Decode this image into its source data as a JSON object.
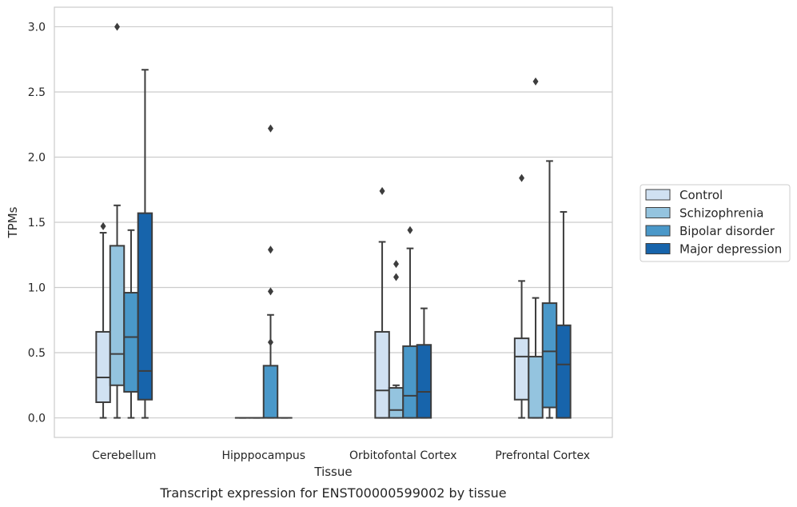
{
  "caption": "Transcript expression for ENST00000599002 by tissue",
  "chart_data": {
    "type": "box",
    "xlabel": "Tissue",
    "ylabel": "TPMs",
    "ylim": [
      -0.15,
      3.15
    ],
    "yticks": [
      "0.0",
      "0.5",
      "1.0",
      "1.5",
      "2.0",
      "2.5",
      "3.0"
    ],
    "grid": true,
    "legend_placement": "right",
    "categories": [
      "Cerebellum",
      "Hipppocampus",
      "Orbitofontal Cortex",
      "Prefrontal Cortex"
    ],
    "series": [
      {
        "name": "Control",
        "color": "#d0e1f2",
        "boxes": [
          {
            "whislo": 0.0,
            "q1": 0.12,
            "med": 0.31,
            "q3": 0.66,
            "whishi": 1.42,
            "fliers": [
              1.47
            ]
          },
          {
            "whislo": 0.0,
            "q1": 0.0,
            "med": 0.0,
            "q3": 0.0,
            "whishi": 0.0,
            "fliers": []
          },
          {
            "whislo": 0.0,
            "q1": 0.0,
            "med": 0.21,
            "q3": 0.66,
            "whishi": 1.35,
            "fliers": [
              1.74
            ]
          },
          {
            "whislo": 0.0,
            "q1": 0.14,
            "med": 0.47,
            "q3": 0.61,
            "whishi": 1.05,
            "fliers": [
              1.84
            ]
          }
        ]
      },
      {
        "name": "Schizophrenia",
        "color": "#94c4df",
        "boxes": [
          {
            "whislo": 0.0,
            "q1": 0.25,
            "med": 0.49,
            "q3": 1.32,
            "whishi": 1.63,
            "fliers": [
              3.0
            ]
          },
          {
            "whislo": 0.0,
            "q1": 0.0,
            "med": 0.0,
            "q3": 0.0,
            "whishi": 0.0,
            "fliers": []
          },
          {
            "whislo": 0.0,
            "q1": 0.0,
            "med": 0.06,
            "q3": 0.23,
            "whishi": 0.25,
            "fliers": [
              1.08,
              1.18
            ]
          },
          {
            "whislo": 0.0,
            "q1": 0.0,
            "med": 0.0,
            "q3": 0.47,
            "whishi": 0.92,
            "fliers": [
              2.58
            ]
          }
        ]
      },
      {
        "name": "Bipolar disorder",
        "color": "#4a98c9",
        "boxes": [
          {
            "whislo": 0.0,
            "q1": 0.2,
            "med": 0.62,
            "q3": 0.96,
            "whishi": 1.44,
            "fliers": []
          },
          {
            "whislo": 0.0,
            "q1": 0.0,
            "med": 0.0,
            "q3": 0.4,
            "whishi": 0.79,
            "fliers": [
              0.58,
              0.97,
              1.29,
              2.22
            ]
          },
          {
            "whislo": 0.0,
            "q1": 0.0,
            "med": 0.17,
            "q3": 0.55,
            "whishi": 1.3,
            "fliers": [
              1.44
            ]
          },
          {
            "whislo": 0.0,
            "q1": 0.08,
            "med": 0.51,
            "q3": 0.88,
            "whishi": 1.97,
            "fliers": []
          }
        ]
      },
      {
        "name": "Major depression",
        "color": "#1764ab",
        "boxes": [
          {
            "whislo": 0.0,
            "q1": 0.14,
            "med": 0.36,
            "q3": 1.57,
            "whishi": 2.67,
            "fliers": []
          },
          {
            "whislo": 0.0,
            "q1": 0.0,
            "med": 0.0,
            "q3": 0.0,
            "whishi": 0.0,
            "fliers": []
          },
          {
            "whislo": 0.0,
            "q1": 0.0,
            "med": 0.2,
            "q3": 0.56,
            "whishi": 0.84,
            "fliers": []
          },
          {
            "whislo": 0.0,
            "q1": 0.0,
            "med": 0.41,
            "q3": 0.71,
            "whishi": 1.58,
            "fliers": []
          }
        ]
      }
    ]
  }
}
